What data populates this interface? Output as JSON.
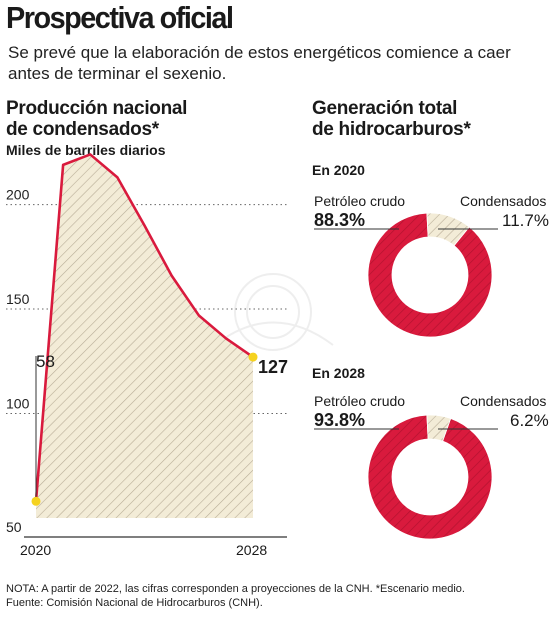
{
  "header": {
    "title": "Prospectiva oficial",
    "subtitle": "Se prevé que la elaboración de estos energéticos comience a caer antes de terminar el sexenio."
  },
  "colors": {
    "accent": "#d91a3d",
    "fill": "#f3ecd7",
    "hatch": "#b8ad97",
    "marker": "#f5d21f"
  },
  "chart_data": [
    {
      "type": "area",
      "title": "Producción nacional de condensados*",
      "ylabel": "Miles de barriles diarios",
      "x": [
        2020,
        2021,
        2022,
        2023,
        2024,
        2025,
        2026,
        2027,
        2028
      ],
      "values": [
        58,
        219,
        224,
        213,
        190,
        166,
        147,
        136,
        127
      ],
      "ylim": [
        50,
        240
      ],
      "yticks": [
        50,
        100,
        150,
        200
      ],
      "xtick_labels": [
        "2020",
        "2028"
      ],
      "labels": {
        "start": "58",
        "end": "127"
      },
      "grid": true
    },
    {
      "type": "pie",
      "title": "Generación total de hidrocarburos*",
      "subtitle": "En 2020",
      "categories": [
        "Petróleo crudo",
        "Condensados"
      ],
      "values": [
        88.3,
        11.7
      ],
      "value_labels": [
        "88.3%",
        "11.7%"
      ]
    },
    {
      "type": "pie",
      "title": "Generación total de hidrocarburos*",
      "subtitle": "En 2028",
      "categories": [
        "Petróleo crudo",
        "Condensados"
      ],
      "values": [
        93.8,
        6.2
      ],
      "value_labels": [
        "93.8%",
        "6.2%"
      ]
    }
  ],
  "left": {
    "title_line1": "Producción nacional",
    "title_line2": "de condensados*",
    "units": "Miles de barriles diarios"
  },
  "right": {
    "title_line1": "Generación total",
    "title_line2": "de hidrocarburos*"
  },
  "footnote": {
    "line1": "NOTA: A partir de 2022, las cifras corresponden a proyecciones de la CNH. *Escenario medio.",
    "line2": "Fuente: Comisión Nacional de Hidrocarburos (CNH)."
  }
}
